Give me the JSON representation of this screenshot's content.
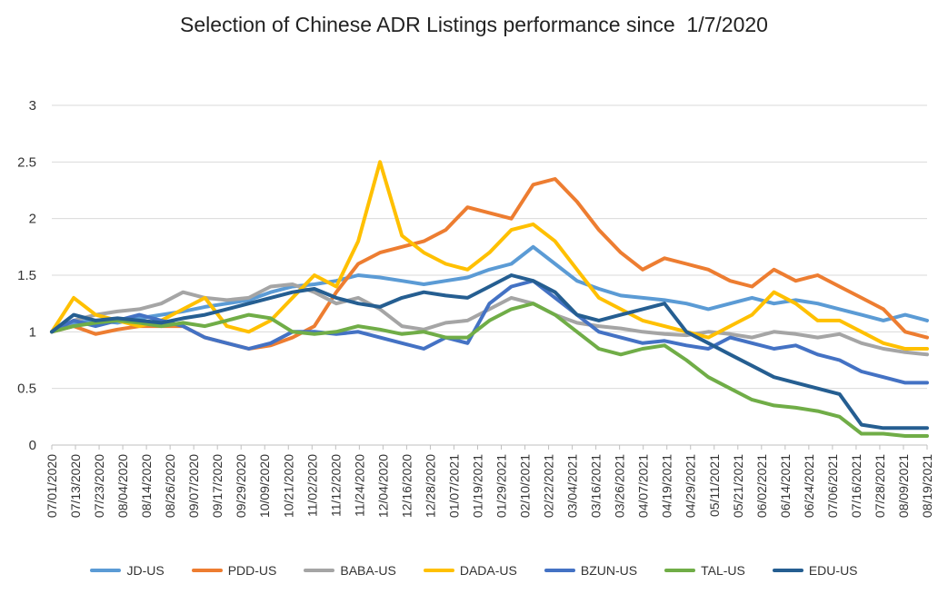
{
  "chart_data": {
    "type": "line",
    "title": "Selection of Chinese ADR Listings performance since  1/7/2020",
    "xlabel": "",
    "ylabel": "",
    "ylim": [
      0,
      3
    ],
    "yticks": [
      "0",
      "0.5",
      "1",
      "1.5",
      "2",
      "2.5",
      "3"
    ],
    "grid": "horizontal",
    "legend_position": "bottom",
    "x_tick_labels": [
      "07/01/2020",
      "07/13/2020",
      "07/23/2020",
      "08/04/2020",
      "08/14/2020",
      "08/26/2020",
      "09/07/2020",
      "09/17/2020",
      "09/29/2020",
      "10/09/2020",
      "10/21/2020",
      "11/02/2020",
      "11/12/2020",
      "11/24/2020",
      "12/04/2020",
      "12/16/2020",
      "12/28/2020",
      "01/07/2021",
      "01/19/2021",
      "01/29/2021",
      "02/10/2021",
      "02/22/2021",
      "03/04/2021",
      "03/16/2021",
      "03/26/2021",
      "04/07/2021",
      "04/19/2021",
      "04/29/2021",
      "05/11/2021",
      "05/21/2021",
      "06/02/2021",
      "06/14/2021",
      "06/24/2021",
      "07/06/2021",
      "07/16/2021",
      "07/28/2021",
      "08/09/2021",
      "08/19/2021"
    ],
    "series": [
      {
        "name": "JD-US",
        "color": "#5B9BD5",
        "values": [
          1.0,
          1.08,
          1.1,
          1.08,
          1.12,
          1.15,
          1.18,
          1.22,
          1.25,
          1.28,
          1.35,
          1.4,
          1.42,
          1.45,
          1.5,
          1.48,
          1.45,
          1.42,
          1.45,
          1.48,
          1.55,
          1.6,
          1.75,
          1.6,
          1.45,
          1.38,
          1.32,
          1.3,
          1.28,
          1.25,
          1.2,
          1.25,
          1.3,
          1.25,
          1.28,
          1.25,
          1.2,
          1.15,
          1.1,
          1.15,
          1.1
        ]
      },
      {
        "name": "PDD-US",
        "color": "#ED7D31",
        "values": [
          1.0,
          1.05,
          0.98,
          1.02,
          1.05,
          1.05,
          1.05,
          0.95,
          0.9,
          0.85,
          0.88,
          0.95,
          1.05,
          1.35,
          1.6,
          1.7,
          1.75,
          1.8,
          1.9,
          2.1,
          2.05,
          2.0,
          2.3,
          2.35,
          2.15,
          1.9,
          1.7,
          1.55,
          1.65,
          1.6,
          1.55,
          1.45,
          1.4,
          1.55,
          1.45,
          1.5,
          1.4,
          1.3,
          1.2,
          1.0,
          0.95
        ]
      },
      {
        "name": "BABA-US",
        "color": "#A5A5A5",
        "values": [
          1.0,
          1.1,
          1.15,
          1.18,
          1.2,
          1.25,
          1.35,
          1.3,
          1.28,
          1.3,
          1.4,
          1.42,
          1.35,
          1.25,
          1.3,
          1.2,
          1.05,
          1.02,
          1.08,
          1.1,
          1.2,
          1.3,
          1.25,
          1.15,
          1.08,
          1.05,
          1.03,
          1.0,
          0.98,
          0.97,
          1.0,
          0.98,
          0.95,
          1.0,
          0.98,
          0.95,
          0.98,
          0.9,
          0.85,
          0.82,
          0.8
        ]
      },
      {
        "name": "DADA-US",
        "color": "#FFC000",
        "values": [
          1.0,
          1.3,
          1.15,
          1.1,
          1.05,
          1.1,
          1.2,
          1.3,
          1.05,
          1.0,
          1.1,
          1.3,
          1.5,
          1.4,
          1.8,
          2.5,
          1.85,
          1.7,
          1.6,
          1.55,
          1.7,
          1.9,
          1.95,
          1.8,
          1.55,
          1.3,
          1.2,
          1.1,
          1.05,
          1.0,
          0.95,
          1.05,
          1.15,
          1.35,
          1.25,
          1.1,
          1.1,
          1.0,
          0.9,
          0.85,
          0.85
        ]
      },
      {
        "name": "BZUN-US",
        "color": "#4472C4",
        "values": [
          1.0,
          1.1,
          1.05,
          1.1,
          1.15,
          1.1,
          1.05,
          0.95,
          0.9,
          0.85,
          0.9,
          1.0,
          1.0,
          0.98,
          1.0,
          0.95,
          0.9,
          0.85,
          0.95,
          0.9,
          1.25,
          1.4,
          1.45,
          1.3,
          1.15,
          1.0,
          0.95,
          0.9,
          0.92,
          0.88,
          0.85,
          0.95,
          0.9,
          0.85,
          0.88,
          0.8,
          0.75,
          0.65,
          0.6,
          0.55,
          0.55
        ]
      },
      {
        "name": "TAL-US",
        "color": "#70AD47",
        "values": [
          1.0,
          1.05,
          1.08,
          1.1,
          1.08,
          1.05,
          1.08,
          1.05,
          1.1,
          1.15,
          1.12,
          1.0,
          0.98,
          1.0,
          1.05,
          1.02,
          0.98,
          1.0,
          0.95,
          0.95,
          1.1,
          1.2,
          1.25,
          1.15,
          1.0,
          0.85,
          0.8,
          0.85,
          0.88,
          0.75,
          0.6,
          0.5,
          0.4,
          0.35,
          0.33,
          0.3,
          0.25,
          0.1,
          0.1,
          0.08,
          0.08
        ]
      },
      {
        "name": "EDU-US",
        "color": "#255E91",
        "values": [
          1.0,
          1.15,
          1.1,
          1.12,
          1.1,
          1.08,
          1.12,
          1.15,
          1.2,
          1.25,
          1.3,
          1.35,
          1.38,
          1.3,
          1.25,
          1.22,
          1.3,
          1.35,
          1.32,
          1.3,
          1.4,
          1.5,
          1.45,
          1.35,
          1.15,
          1.1,
          1.15,
          1.2,
          1.25,
          1.0,
          0.9,
          0.8,
          0.7,
          0.6,
          0.55,
          0.5,
          0.45,
          0.18,
          0.15,
          0.15,
          0.15
        ]
      }
    ]
  }
}
